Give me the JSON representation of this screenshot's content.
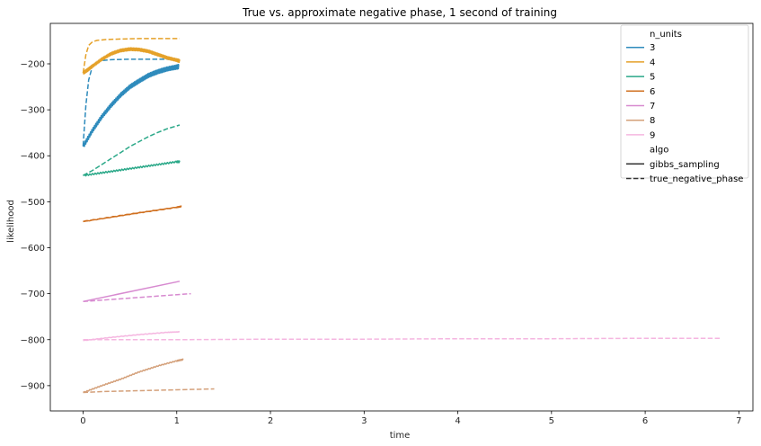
{
  "chart_data": {
    "type": "line",
    "title": "True vs. approximate negative phase, 1 second of training",
    "xlabel": "time",
    "ylabel": "likelihood",
    "xlim": [
      -0.35,
      7.15
    ],
    "ylim": [
      -955,
      -112
    ],
    "xticks": [
      0,
      1,
      2,
      3,
      4,
      5,
      6,
      7
    ],
    "yticks": [
      -900,
      -800,
      -700,
      -600,
      -500,
      -400,
      -300,
      -200
    ],
    "grid": false,
    "legend": {
      "placement": "top-right",
      "hue_title": "n_units",
      "style_title": "algo",
      "hue_entries": [
        {
          "label": "3",
          "color": "#2e8bbc"
        },
        {
          "label": "4",
          "color": "#e5a129"
        },
        {
          "label": "5",
          "color": "#2aa888"
        },
        {
          "label": "6",
          "color": "#d07020"
        },
        {
          "label": "7",
          "color": "#d78ad0"
        },
        {
          "label": "8",
          "color": "#d4a07a"
        },
        {
          "label": "9",
          "color": "#f5b6e0"
        }
      ],
      "style_entries": [
        {
          "label": "gibbs_sampling",
          "dash": "solid"
        },
        {
          "label": "true_negative_phase",
          "dash": "dashed"
        }
      ]
    },
    "series": [
      {
        "n_units": "3",
        "algo": "gibbs_sampling",
        "color": "#2e8bbc",
        "style": "solid",
        "jitter": 9,
        "x": [
          0,
          0.1,
          0.2,
          0.3,
          0.4,
          0.5,
          0.6,
          0.7,
          0.8,
          0.9,
          1.0,
          1.02
        ],
        "y": [
          -380,
          -345,
          -315,
          -290,
          -268,
          -250,
          -237,
          -225,
          -217,
          -211,
          -207,
          -206
        ]
      },
      {
        "n_units": "3",
        "algo": "true_negative_phase",
        "color": "#2e8bbc",
        "style": "dashed",
        "x": [
          0,
          0.03,
          0.06,
          0.1,
          0.15,
          0.2,
          0.3,
          0.5,
          0.8,
          1.02
        ],
        "y": [
          -378,
          -290,
          -235,
          -205,
          -196,
          -193,
          -191,
          -190,
          -190,
          -190
        ]
      },
      {
        "n_units": "4",
        "algo": "gibbs_sampling",
        "color": "#e5a129",
        "style": "solid",
        "jitter": 6,
        "x": [
          0,
          0.05,
          0.1,
          0.2,
          0.3,
          0.4,
          0.5,
          0.6,
          0.7,
          0.8,
          0.9,
          1.0,
          1.03
        ],
        "y": [
          -220,
          -213,
          -205,
          -190,
          -178,
          -171,
          -168,
          -169,
          -173,
          -180,
          -187,
          -192,
          -194
        ]
      },
      {
        "n_units": "4",
        "algo": "true_negative_phase",
        "color": "#e5a129",
        "style": "dashed",
        "x": [
          0,
          0.03,
          0.06,
          0.1,
          0.15,
          0.25,
          0.4,
          0.6,
          0.8,
          1.03
        ],
        "y": [
          -220,
          -180,
          -160,
          -152,
          -149,
          -147,
          -146,
          -145,
          -145,
          -145
        ]
      },
      {
        "n_units": "5",
        "algo": "gibbs_sampling",
        "color": "#2aa888",
        "style": "solid",
        "jitter": 3,
        "x": [
          0,
          0.2,
          0.4,
          0.6,
          0.8,
          1.0,
          1.03
        ],
        "y": [
          -443,
          -437,
          -431,
          -425,
          -419,
          -413,
          -413
        ]
      },
      {
        "n_units": "5",
        "algo": "true_negative_phase",
        "color": "#2aa888",
        "style": "dashed",
        "x": [
          0,
          0.1,
          0.2,
          0.3,
          0.4,
          0.5,
          0.6,
          0.7,
          0.8,
          0.9,
          1.0,
          1.03
        ],
        "y": [
          -443,
          -432,
          -419,
          -406,
          -393,
          -380,
          -369,
          -358,
          -349,
          -341,
          -335,
          -333
        ]
      },
      {
        "n_units": "6",
        "algo": "gibbs_sampling",
        "color": "#d07020",
        "style": "solid",
        "jitter": 1.5,
        "x": [
          0,
          0.5,
          1.0,
          1.05
        ],
        "y": [
          -543,
          -527,
          -512,
          -510
        ]
      },
      {
        "n_units": "6",
        "algo": "true_negative_phase",
        "color": "#d07020",
        "style": "dashed",
        "x": [
          0,
          0.5,
          1.0,
          1.05
        ],
        "y": [
          -543,
          -527,
          -512,
          -511
        ]
      },
      {
        "n_units": "7",
        "algo": "gibbs_sampling",
        "color": "#d78ad0",
        "style": "solid",
        "jitter": 0,
        "x": [
          0,
          1.03
        ],
        "y": [
          -717,
          -673
        ]
      },
      {
        "n_units": "7",
        "algo": "true_negative_phase",
        "color": "#d78ad0",
        "style": "dashed",
        "x": [
          0,
          1.15
        ],
        "y": [
          -717,
          -700
        ]
      },
      {
        "n_units": "8",
        "algo": "gibbs_sampling",
        "color": "#d4a07a",
        "style": "solid",
        "jitter": 2,
        "x": [
          0,
          0.2,
          0.4,
          0.6,
          0.8,
          1.0,
          1.07
        ],
        "y": [
          -915,
          -900,
          -886,
          -870,
          -857,
          -846,
          -843
        ]
      },
      {
        "n_units": "8",
        "algo": "true_negative_phase",
        "color": "#d4a07a",
        "style": "dashed",
        "x": [
          0,
          0.2,
          0.6,
          1.0,
          1.4
        ],
        "y": [
          -915,
          -913,
          -911,
          -909,
          -907
        ]
      },
      {
        "n_units": "9",
        "algo": "gibbs_sampling",
        "color": "#f5b6e0",
        "style": "solid",
        "jitter": 1,
        "x": [
          0,
          0.3,
          0.6,
          0.9,
          1.03
        ],
        "y": [
          -802,
          -795,
          -789,
          -784,
          -783
        ]
      },
      {
        "n_units": "9",
        "algo": "true_negative_phase",
        "color": "#f5b6e0",
        "style": "dashed",
        "x": [
          0,
          1,
          2,
          3,
          4,
          5,
          6,
          6.8
        ],
        "y": [
          -800,
          -800,
          -799,
          -799,
          -798,
          -798,
          -797,
          -797
        ]
      }
    ]
  }
}
